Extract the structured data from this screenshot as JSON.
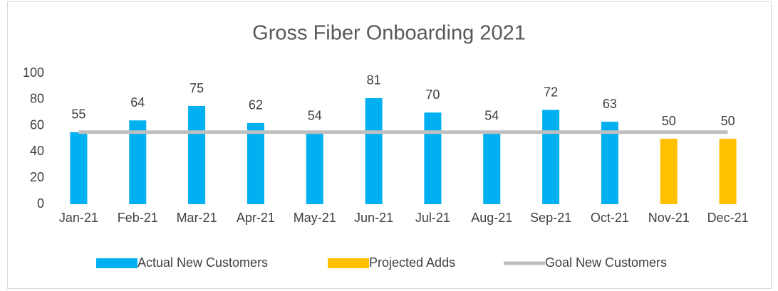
{
  "chart_data": {
    "type": "bar",
    "title": "Gross Fiber Onboarding 2021",
    "categories": [
      "Jan-21",
      "Feb-21",
      "Mar-21",
      "Apr-21",
      "May-21",
      "Jun-21",
      "Jul-21",
      "Aug-21",
      "Sep-21",
      "Oct-21",
      "Nov-21",
      "Dec-21"
    ],
    "series": [
      {
        "name": "Actual New Customers",
        "color": "#00b0f0",
        "type": "bar",
        "values": [
          55,
          64,
          75,
          62,
          54,
          81,
          70,
          54,
          72,
          63,
          null,
          null
        ]
      },
      {
        "name": "Projected Adds",
        "color": "#ffc000",
        "type": "bar",
        "values": [
          null,
          null,
          null,
          null,
          null,
          null,
          null,
          null,
          null,
          null,
          50,
          50
        ]
      },
      {
        "name": "Goal New Customers",
        "color": "#bfbfbf",
        "type": "line",
        "values": [
          55,
          55,
          55,
          55,
          55,
          55,
          55,
          55,
          55,
          55,
          55,
          55
        ]
      }
    ],
    "ylim": [
      0,
      100
    ],
    "yticks": [
      0,
      20,
      40,
      60,
      80,
      100
    ],
    "grid": false,
    "legend": "bottom"
  }
}
